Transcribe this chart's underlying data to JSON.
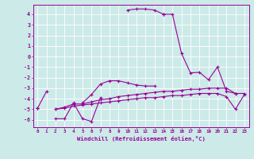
{
  "bg_color": "#cceae8",
  "grid_color": "#ffffff",
  "line_color": "#990099",
  "xlabel": "Windchill (Refroidissement éolien,°C)",
  "xlim": [
    -0.5,
    23.5
  ],
  "ylim": [
    -6.7,
    4.9
  ],
  "xticks": [
    0,
    1,
    2,
    3,
    4,
    5,
    6,
    7,
    8,
    9,
    10,
    11,
    12,
    13,
    14,
    15,
    16,
    17,
    18,
    19,
    20,
    21,
    22,
    23
  ],
  "yticks": [
    -6,
    -5,
    -4,
    -3,
    -2,
    -1,
    0,
    1,
    2,
    3,
    4
  ],
  "series": [
    [
      null,
      null,
      null,
      null,
      null,
      null,
      null,
      null,
      null,
      null,
      4.4,
      4.5,
      4.5,
      4.4,
      4.0,
      null,
      null,
      null,
      null,
      null,
      null,
      null,
      null,
      null
    ],
    [
      null,
      null,
      null,
      null,
      null,
      null,
      null,
      null,
      null,
      null,
      null,
      null,
      null,
      null,
      4.0,
      4.0,
      0.3,
      -1.55,
      -1.5,
      -2.2,
      -1.0,
      -3.3,
      -3.5,
      null
    ],
    [
      -4.9,
      -3.3,
      null,
      null,
      null,
      -4.4,
      -3.6,
      -2.6,
      -2.3,
      -2.3,
      -2.5,
      -2.7,
      -2.8,
      -2.8,
      null,
      null,
      null,
      null,
      null,
      null,
      null,
      null,
      null,
      null
    ],
    [
      -4.9,
      null,
      -5.9,
      -5.9,
      -4.4,
      -5.9,
      -6.15,
      -3.9,
      null,
      null,
      null,
      null,
      null,
      null,
      null,
      null,
      null,
      null,
      null,
      null,
      null,
      null,
      null,
      null
    ],
    [
      -4.9,
      null,
      -5.0,
      -4.8,
      -4.5,
      -4.5,
      -4.3,
      -4.1,
      -4.0,
      -3.8,
      -3.7,
      -3.6,
      -3.5,
      -3.4,
      -3.3,
      -3.3,
      -3.2,
      -3.1,
      -3.1,
      -3.0,
      -3.0,
      -3.0,
      -3.5,
      -3.5
    ],
    [
      -4.9,
      null,
      -5.0,
      -4.9,
      -4.7,
      -4.6,
      -4.5,
      -4.4,
      -4.3,
      -4.2,
      -4.1,
      -4.0,
      -3.9,
      -3.9,
      -3.8,
      -3.7,
      -3.7,
      -3.6,
      -3.5,
      -3.5,
      -3.5,
      -3.8,
      -5.0,
      -3.6
    ]
  ]
}
